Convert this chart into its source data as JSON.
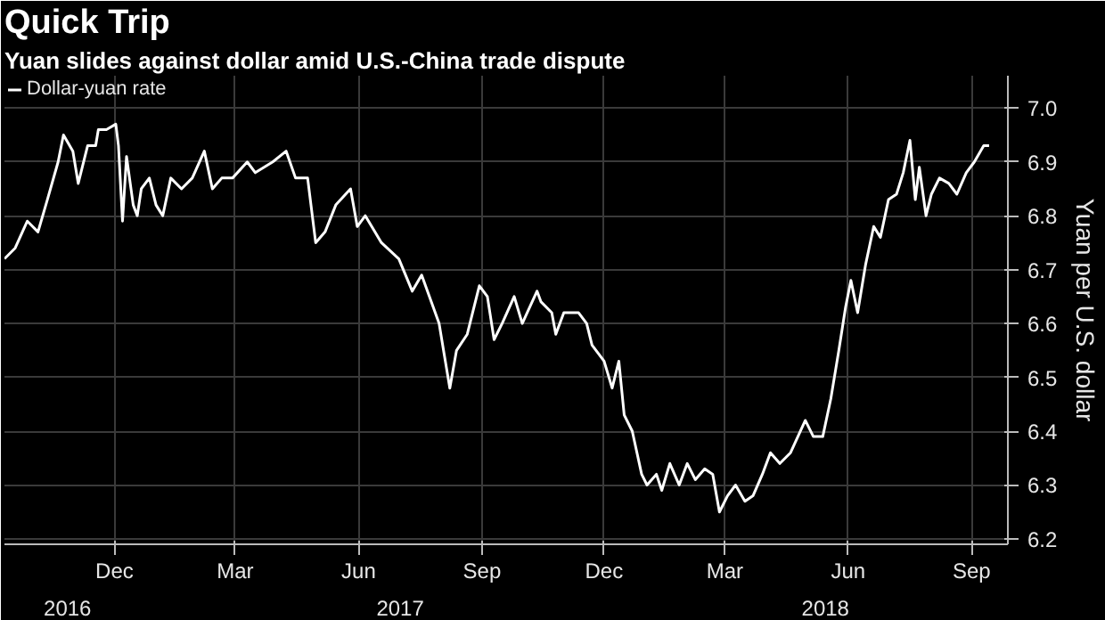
{
  "chart_data": {
    "type": "line",
    "title": "Quick Trip",
    "subtitle": "Yuan slides against dollar amid U.S.-China trade dispute",
    "ylabel": "Yuan per U.S. dollar",
    "x": [
      "2016-09-10",
      "2016-09-18",
      "2016-09-27",
      "2016-10-05",
      "2016-10-12",
      "2016-10-20",
      "2016-10-24",
      "2016-10-31",
      "2016-11-04",
      "2016-11-11",
      "2016-11-17",
      "2016-11-19",
      "2016-11-25",
      "2016-12-02",
      "2016-12-04",
      "2016-12-07",
      "2016-12-10",
      "2016-12-15",
      "2016-12-18",
      "2016-12-21",
      "2016-12-27",
      "2017-01-01",
      "2017-01-06",
      "2017-01-12",
      "2017-01-20",
      "2017-01-28",
      "2017-02-06",
      "2017-02-12",
      "2017-02-19",
      "2017-02-27",
      "2017-03-10",
      "2017-03-16",
      "2017-03-29",
      "2017-04-08",
      "2017-04-15",
      "2017-04-24",
      "2017-04-30",
      "2017-05-07",
      "2017-05-15",
      "2017-05-26",
      "2017-05-31",
      "2017-06-06",
      "2017-06-18",
      "2017-07-01",
      "2017-07-11",
      "2017-07-18",
      "2017-07-31",
      "2017-08-04",
      "2017-08-08",
      "2017-08-13",
      "2017-08-21",
      "2017-08-30",
      "2017-09-05",
      "2017-09-10",
      "2017-09-16",
      "2017-09-25",
      "2017-10-01",
      "2017-10-12",
      "2017-10-15",
      "2017-10-23",
      "2017-10-26",
      "2017-11-01",
      "2017-11-12",
      "2017-11-18",
      "2017-11-22",
      "2017-12-01",
      "2017-12-07",
      "2017-12-12",
      "2017-12-16",
      "2017-12-22",
      "2017-12-29",
      "2018-01-02",
      "2018-01-09",
      "2018-01-13",
      "2018-01-19",
      "2018-01-26",
      "2018-02-01",
      "2018-02-07",
      "2018-02-14",
      "2018-02-20",
      "2018-02-25",
      "2018-03-03",
      "2018-03-09",
      "2018-03-16",
      "2018-03-22",
      "2018-03-29",
      "2018-04-04",
      "2018-04-11",
      "2018-04-19",
      "2018-04-30",
      "2018-05-06",
      "2018-05-13",
      "2018-05-19",
      "2018-05-25",
      "2018-05-30",
      "2018-06-03",
      "2018-06-08",
      "2018-06-14",
      "2018-06-20",
      "2018-06-25",
      "2018-07-01",
      "2018-07-07",
      "2018-07-12",
      "2018-07-17",
      "2018-07-21",
      "2018-07-24",
      "2018-07-29",
      "2018-08-02",
      "2018-08-08",
      "2018-08-15",
      "2018-08-21",
      "2018-08-28",
      "2018-09-03",
      "2018-09-10",
      "2018-09-14"
    ],
    "series": [
      {
        "name": "Dollar-yuan rate",
        "color": "#ffffff",
        "values": [
          6.72,
          6.74,
          6.79,
          6.77,
          6.83,
          6.9,
          6.95,
          6.92,
          6.86,
          6.93,
          6.93,
          6.96,
          6.96,
          6.97,
          6.93,
          6.79,
          6.91,
          6.82,
          6.8,
          6.85,
          6.87,
          6.82,
          6.8,
          6.87,
          6.85,
          6.87,
          6.92,
          6.85,
          6.87,
          6.87,
          6.9,
          6.88,
          6.9,
          6.92,
          6.87,
          6.87,
          6.75,
          6.77,
          6.82,
          6.85,
          6.78,
          6.8,
          6.75,
          6.72,
          6.66,
          6.69,
          6.6,
          6.54,
          6.48,
          6.55,
          6.58,
          6.67,
          6.65,
          6.57,
          6.6,
          6.65,
          6.6,
          6.66,
          6.64,
          6.62,
          6.58,
          6.62,
          6.62,
          6.6,
          6.56,
          6.53,
          6.48,
          6.53,
          6.43,
          6.4,
          6.32,
          6.3,
          6.32,
          6.29,
          6.34,
          6.3,
          6.34,
          6.31,
          6.33,
          6.32,
          6.25,
          6.28,
          6.3,
          6.27,
          6.28,
          6.32,
          6.36,
          6.34,
          6.36,
          6.42,
          6.39,
          6.39,
          6.46,
          6.55,
          6.63,
          6.68,
          6.62,
          6.71,
          6.78,
          6.76,
          6.83,
          6.84,
          6.88,
          6.94,
          6.83,
          6.89,
          6.8,
          6.84,
          6.87,
          6.86,
          6.84,
          6.88,
          6.9,
          6.93,
          6.93
        ]
      }
    ],
    "xlim": [
      "2016-09-10",
      "2018-09-28"
    ],
    "xticks": [
      {
        "value": "2016-12-01",
        "label": "Dec"
      },
      {
        "value": "2017-03-01",
        "label": "Mar"
      },
      {
        "value": "2017-06-01",
        "label": "Jun"
      },
      {
        "value": "2017-09-01",
        "label": "Sep"
      },
      {
        "value": "2017-12-01",
        "label": "Dec"
      },
      {
        "value": "2018-03-01",
        "label": "Mar"
      },
      {
        "value": "2018-06-01",
        "label": "Jun"
      },
      {
        "value": "2018-09-01",
        "label": "Sep"
      }
    ],
    "x2lim": [
      "2016-09-10",
      "2018-09-28"
    ],
    "x2ticks": [
      {
        "value": "2016-10-27",
        "label": "2016"
      },
      {
        "value": "2017-07-02",
        "label": "2017"
      },
      {
        "value": "2018-05-15",
        "label": "2018"
      }
    ],
    "ylim": [
      6.19,
      7.06
    ],
    "yticks": [
      6.2,
      6.3,
      6.4,
      6.5,
      6.6,
      6.7,
      6.8,
      6.9,
      {
        "value": 7.0,
        "label": "7.0"
      }
    ],
    "grid": true,
    "legend": "top left",
    "line_style": "solid",
    "marker": "none"
  }
}
